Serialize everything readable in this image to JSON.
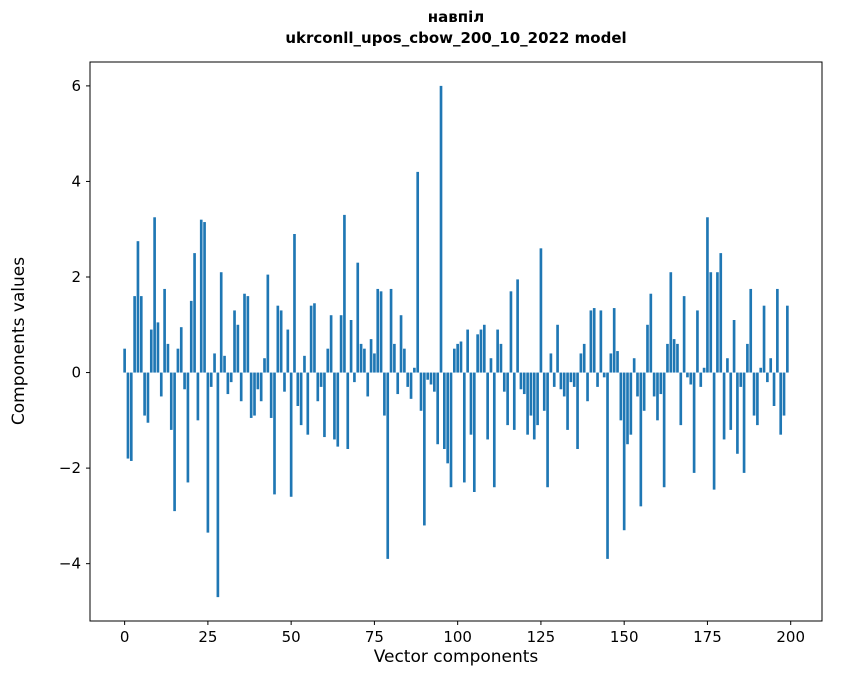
{
  "chart_data": {
    "type": "bar",
    "title": "навпіл",
    "subtitle": "ukrconll_upos_cbow_200_10_2022 model",
    "xlabel": "Vector components",
    "ylabel": "Components values",
    "bar_color": "#1f77b4",
    "axis_color": "#000000",
    "background_color": "#ffffff",
    "xlim": [
      -10.4,
      209.4
    ],
    "ylim": [
      -5.2,
      6.5
    ],
    "grid": false,
    "legend": false,
    "xticks": {
      "values": [
        0,
        25,
        50,
        75,
        100,
        125,
        150,
        175,
        200
      ],
      "labels": [
        "0",
        "25",
        "50",
        "75",
        "100",
        "125",
        "150",
        "175",
        "200"
      ]
    },
    "yticks": {
      "values": [
        -4,
        -2,
        0,
        2,
        4,
        6
      ],
      "labels": [
        "−4",
        "−2",
        "0",
        "2",
        "4",
        "6"
      ]
    },
    "x_is_index": true,
    "values": [
      0.5,
      -1.8,
      -1.85,
      1.6,
      2.75,
      1.6,
      -0.9,
      -1.05,
      0.9,
      3.25,
      1.05,
      -0.5,
      1.75,
      0.6,
      -1.2,
      -2.9,
      0.5,
      0.95,
      -0.35,
      -2.3,
      1.5,
      2.5,
      -1.0,
      3.2,
      3.15,
      -3.35,
      -0.3,
      0.4,
      -4.7,
      2.1,
      0.35,
      -0.45,
      -0.2,
      1.3,
      1.0,
      -0.6,
      1.65,
      1.6,
      -0.95,
      -0.9,
      -0.35,
      -0.6,
      0.3,
      2.05,
      -0.95,
      -2.55,
      1.4,
      1.3,
      -0.4,
      0.9,
      -2.6,
      2.9,
      -0.7,
      -1.1,
      0.35,
      -1.3,
      1.4,
      1.45,
      -0.6,
      -0.3,
      -1.35,
      0.5,
      1.2,
      -1.4,
      -1.55,
      1.2,
      3.3,
      -1.6,
      1.1,
      -0.2,
      2.3,
      0.6,
      0.5,
      -0.5,
      0.7,
      0.4,
      1.75,
      1.7,
      -0.9,
      -3.9,
      1.75,
      0.6,
      -0.45,
      1.2,
      0.5,
      -0.3,
      -0.55,
      0.1,
      4.2,
      -0.8,
      -3.2,
      -0.15,
      -0.25,
      -0.4,
      -1.5,
      6.0,
      -1.6,
      -1.9,
      -2.4,
      0.5,
      0.6,
      0.65,
      -2.3,
      0.9,
      -1.3,
      -2.5,
      0.8,
      0.9,
      1.0,
      -1.4,
      0.3,
      -2.4,
      0.9,
      0.6,
      -0.4,
      -1.1,
      1.7,
      -1.2,
      1.95,
      -0.35,
      -0.45,
      -1.3,
      -0.9,
      -1.4,
      -1.1,
      2.6,
      -0.8,
      -2.4,
      0.4,
      -0.3,
      1.0,
      -0.35,
      -0.5,
      -1.2,
      -0.2,
      -0.3,
      -1.6,
      0.4,
      0.6,
      -0.6,
      1.3,
      1.35,
      -0.3,
      1.3,
      -0.1,
      -3.9,
      0.4,
      1.35,
      0.45,
      -1.0,
      -3.3,
      -1.5,
      -1.3,
      0.3,
      -0.5,
      -2.8,
      -0.8,
      1.0,
      1.65,
      -0.5,
      -1.0,
      -0.45,
      -2.4,
      0.6,
      2.1,
      0.7,
      0.6,
      -1.1,
      1.6,
      -0.1,
      -0.25,
      -2.1,
      1.3,
      -0.3,
      0.1,
      3.25,
      2.1,
      -2.45,
      2.1,
      2.5,
      -1.4,
      0.3,
      -1.2,
      1.1,
      -1.7,
      -0.3,
      -2.1,
      0.6,
      1.75,
      -0.9,
      -1.1,
      0.1,
      1.4,
      -0.2,
      0.3,
      -0.7,
      1.75,
      -1.3,
      -0.9,
      1.4
    ]
  }
}
